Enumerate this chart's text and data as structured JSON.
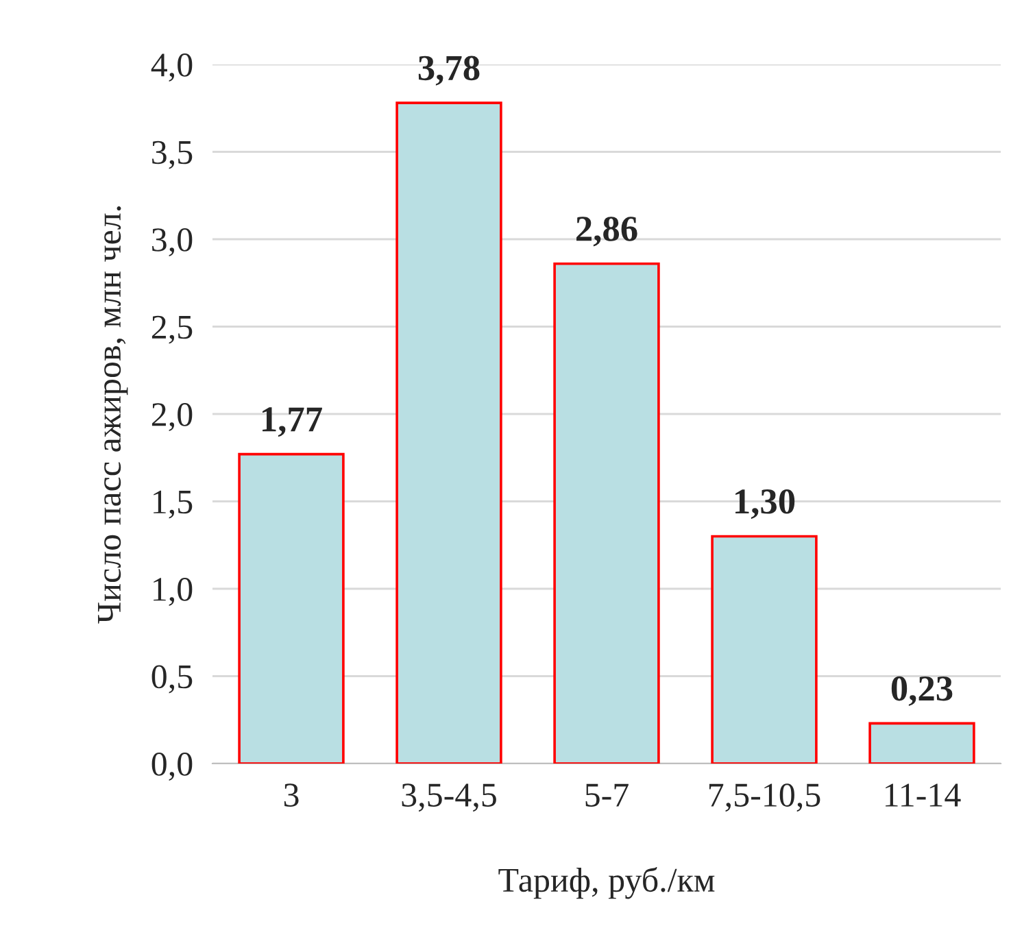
{
  "chart_data": {
    "type": "bar",
    "xlabel": "Тариф, руб./км",
    "ylabel": "Число пасс ажиров, млн чел.",
    "categories": [
      "3",
      "3,5-4,5",
      "5-7",
      "7,5-10,5",
      "11-14"
    ],
    "values": [
      1.77,
      3.78,
      2.86,
      1.3,
      0.23
    ],
    "value_labels": [
      "1,77",
      "3,78",
      "2,86",
      "1,30",
      "0,23"
    ],
    "color": "#b9dfe3",
    "ylim": [
      0,
      4
    ],
    "yticks": [
      {
        "value": 0,
        "label": "0,0"
      },
      {
        "value": 0.5,
        "label": "0,5"
      },
      {
        "value": 1,
        "label": "1,0"
      },
      {
        "value": 1.5,
        "label": "1,5"
      },
      {
        "value": 2,
        "label": "2,0"
      },
      {
        "value": 2.5,
        "label": "2,5"
      },
      {
        "value": 3,
        "label": "3,0"
      },
      {
        "value": 3.5,
        "label": "3,5"
      },
      {
        "value": 4,
        "label": "4,0"
      }
    ],
    "grid": "y"
  }
}
